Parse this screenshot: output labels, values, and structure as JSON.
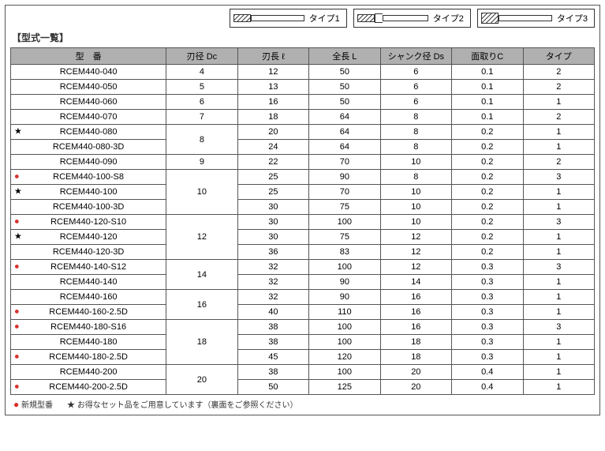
{
  "title": "【型式一覧】",
  "type_legend": [
    {
      "label": "タイプ1",
      "shape": "t1"
    },
    {
      "label": "タイプ2",
      "shape": "t2"
    },
    {
      "label": "タイプ3",
      "shape": "t3"
    }
  ],
  "headers": [
    "型　番",
    "刃径 Dc",
    "刃長 ℓ",
    "全長 L",
    "シャンク径 Ds",
    "面取りC",
    "タイプ"
  ],
  "rows": [
    {
      "model": "RCEM440-040",
      "mark": "",
      "dc": "4",
      "l": "12",
      "L": "50",
      "ds": "6",
      "c": "0.1",
      "t": "2",
      "span_dc": 1
    },
    {
      "model": "RCEM440-050",
      "mark": "",
      "dc": "5",
      "l": "13",
      "L": "50",
      "ds": "6",
      "c": "0.1",
      "t": "2",
      "span_dc": 1
    },
    {
      "model": "RCEM440-060",
      "mark": "",
      "dc": "6",
      "l": "16",
      "L": "50",
      "ds": "6",
      "c": "0.1",
      "t": "1",
      "span_dc": 1
    },
    {
      "model": "RCEM440-070",
      "mark": "",
      "dc": "7",
      "l": "18",
      "L": "64",
      "ds": "8",
      "c": "0.1",
      "t": "2",
      "span_dc": 1
    },
    {
      "model": "RCEM440-080",
      "mark": "star",
      "dc": "8",
      "l": "20",
      "L": "64",
      "ds": "8",
      "c": "0.2",
      "t": "1",
      "span_dc": 2
    },
    {
      "model": "RCEM440-080-3D",
      "mark": "",
      "dc": "",
      "l": "24",
      "L": "64",
      "ds": "8",
      "c": "0.2",
      "t": "1",
      "span_dc": 0
    },
    {
      "model": "RCEM440-090",
      "mark": "",
      "dc": "9",
      "l": "22",
      "L": "70",
      "ds": "10",
      "c": "0.2",
      "t": "2",
      "span_dc": 1
    },
    {
      "model": "RCEM440-100-S8",
      "mark": "red",
      "dc": "10",
      "l": "25",
      "L": "90",
      "ds": "8",
      "c": "0.2",
      "t": "3",
      "span_dc": 3
    },
    {
      "model": "RCEM440-100",
      "mark": "star",
      "dc": "",
      "l": "25",
      "L": "70",
      "ds": "10",
      "c": "0.2",
      "t": "1",
      "span_dc": 0
    },
    {
      "model": "RCEM440-100-3D",
      "mark": "",
      "dc": "",
      "l": "30",
      "L": "75",
      "ds": "10",
      "c": "0.2",
      "t": "1",
      "span_dc": 0
    },
    {
      "model": "RCEM440-120-S10",
      "mark": "red",
      "dc": "12",
      "l": "30",
      "L": "100",
      "ds": "10",
      "c": "0.2",
      "t": "3",
      "span_dc": 3
    },
    {
      "model": "RCEM440-120",
      "mark": "star",
      "dc": "",
      "l": "30",
      "L": "75",
      "ds": "12",
      "c": "0.2",
      "t": "1",
      "span_dc": 0
    },
    {
      "model": "RCEM440-120-3D",
      "mark": "",
      "dc": "",
      "l": "36",
      "L": "83",
      "ds": "12",
      "c": "0.2",
      "t": "1",
      "span_dc": 0
    },
    {
      "model": "RCEM440-140-S12",
      "mark": "red",
      "dc": "14",
      "l": "32",
      "L": "100",
      "ds": "12",
      "c": "0.3",
      "t": "3",
      "span_dc": 2
    },
    {
      "model": "RCEM440-140",
      "mark": "",
      "dc": "",
      "l": "32",
      "L": "90",
      "ds": "14",
      "c": "0.3",
      "t": "1",
      "span_dc": 0
    },
    {
      "model": "RCEM440-160",
      "mark": "",
      "dc": "16",
      "l": "32",
      "L": "90",
      "ds": "16",
      "c": "0.3",
      "t": "1",
      "span_dc": 2
    },
    {
      "model": "RCEM440-160-2.5D",
      "mark": "red",
      "dc": "",
      "l": "40",
      "L": "110",
      "ds": "16",
      "c": "0.3",
      "t": "1",
      "span_dc": 0
    },
    {
      "model": "RCEM440-180-S16",
      "mark": "red",
      "dc": "18",
      "l": "38",
      "L": "100",
      "ds": "16",
      "c": "0.3",
      "t": "3",
      "span_dc": 3
    },
    {
      "model": "RCEM440-180",
      "mark": "",
      "dc": "",
      "l": "38",
      "L": "100",
      "ds": "18",
      "c": "0.3",
      "t": "1",
      "span_dc": 0
    },
    {
      "model": "RCEM440-180-2.5D",
      "mark": "red",
      "dc": "",
      "l": "45",
      "L": "120",
      "ds": "18",
      "c": "0.3",
      "t": "1",
      "span_dc": 0
    },
    {
      "model": "RCEM440-200",
      "mark": "",
      "dc": "20",
      "l": "38",
      "L": "100",
      "ds": "20",
      "c": "0.4",
      "t": "1",
      "span_dc": 2
    },
    {
      "model": "RCEM440-200-2.5D",
      "mark": "red",
      "dc": "",
      "l": "50",
      "L": "125",
      "ds": "20",
      "c": "0.4",
      "t": "1",
      "span_dc": 0
    }
  ],
  "footnote": {
    "new": "新規型番",
    "set": "お得なセット品をご用意しています（裏面をご参照ください）"
  },
  "colors": {
    "header_bg": "#b0b0b0",
    "border": "#555555",
    "red": "#d7302a"
  }
}
